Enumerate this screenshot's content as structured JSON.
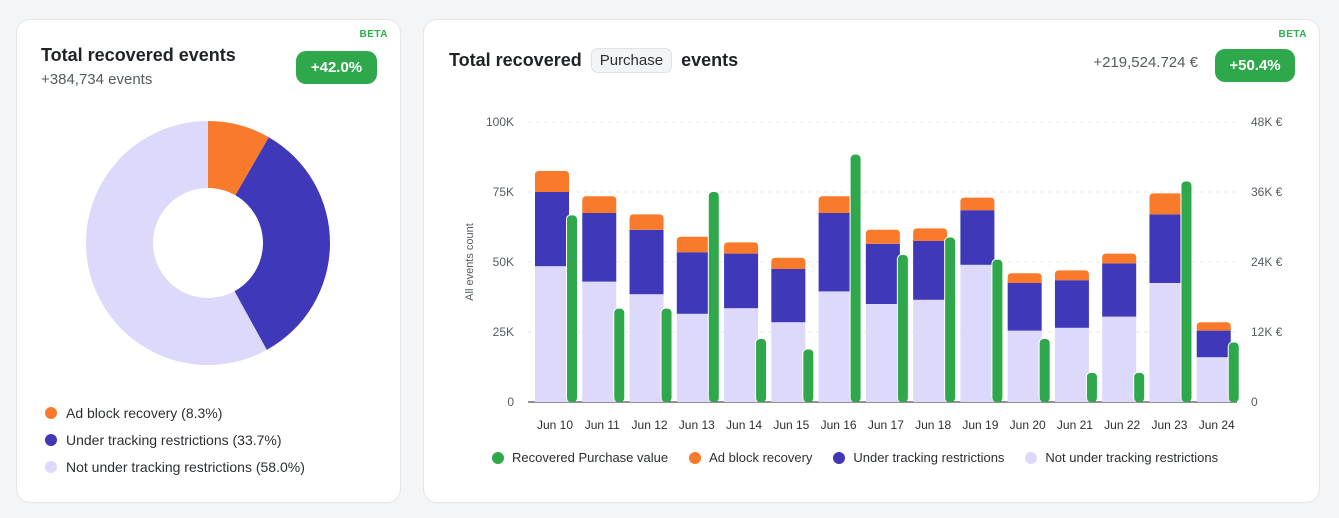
{
  "summary": {
    "beta": "BETA",
    "title": "Total recovered events",
    "subtitle": "+384,734 events",
    "badge": "+42.0%",
    "legend": [
      {
        "label": "Ad block recovery (8.3%)",
        "color": "#f97a2a"
      },
      {
        "label": "Under tracking restrictions (33.7%)",
        "color": "#3f38b8"
      },
      {
        "label": "Not under tracking restrictions (58.0%)",
        "color": "#dcd9fb"
      }
    ]
  },
  "purchase": {
    "beta": "BETA",
    "title_prefix": "Total recovered",
    "event_chip": "Purchase",
    "title_suffix": "events",
    "value": "+219,524.724 €",
    "badge": "+50.4%",
    "legend": [
      {
        "label": "Recovered Purchase value",
        "color": "#2ea84b"
      },
      {
        "label": "Ad block recovery",
        "color": "#f97a2a"
      },
      {
        "label": "Under tracking restrictions",
        "color": "#3f38b8"
      },
      {
        "label": "Not under tracking restrictions",
        "color": "#dcd9fb"
      }
    ]
  },
  "chart_data": [
    {
      "type": "pie",
      "labels": [
        "Ad block recovery",
        "Under tracking restrictions",
        "Not under tracking restrictions"
      ],
      "values": [
        8.3,
        33.7,
        58.0
      ],
      "colors": [
        "#f97a2a",
        "#3f38b8",
        "#dcd9fb"
      ],
      "donut": true
    },
    {
      "type": "bar",
      "stacked": true,
      "categories": [
        "Jun 10",
        "Jun 11",
        "Jun 12",
        "Jun 13",
        "Jun 14",
        "Jun 15",
        "Jun 16",
        "Jun 17",
        "Jun 18",
        "Jun 19",
        "Jun 20",
        "Jun 21",
        "Jun 22",
        "Jun 23",
        "Jun 24"
      ],
      "ylabel": "All events count",
      "ylim": [
        0,
        100000
      ],
      "yticks": [
        "0",
        "25K",
        "50K",
        "75K",
        "100K"
      ],
      "y2lim": [
        0,
        48000
      ],
      "y2ticks": [
        "0",
        "12K €",
        "24K €",
        "36K €",
        "48K €"
      ],
      "grid": true,
      "legend_position": "bottom",
      "series": [
        {
          "name": "Not under tracking restrictions",
          "axis": "left",
          "color": "#dcd9fb",
          "values": [
            48500,
            43000,
            38500,
            31500,
            33500,
            28500,
            39500,
            35000,
            36500,
            49000,
            25500,
            26500,
            30500,
            42500,
            16000
          ]
        },
        {
          "name": "Under tracking restrictions",
          "axis": "left",
          "color": "#3f38b8",
          "values": [
            26500,
            24500,
            23000,
            22000,
            19500,
            19000,
            28000,
            21500,
            21000,
            19500,
            17000,
            17000,
            19000,
            24500,
            9500
          ]
        },
        {
          "name": "Ad block recovery",
          "axis": "left",
          "color": "#f97a2a",
          "values": [
            7500,
            6000,
            5500,
            5500,
            4000,
            4000,
            6000,
            5000,
            4500,
            4500,
            3500,
            3500,
            3500,
            7500,
            3000
          ]
        },
        {
          "name": "Recovered Purchase value",
          "axis": "right",
          "color": "#2ea84b",
          "values": [
            32000,
            16000,
            16000,
            36000,
            10800,
            9000,
            42400,
            25200,
            28200,
            24400,
            10800,
            5000,
            5000,
            37800,
            10200
          ]
        }
      ]
    }
  ]
}
